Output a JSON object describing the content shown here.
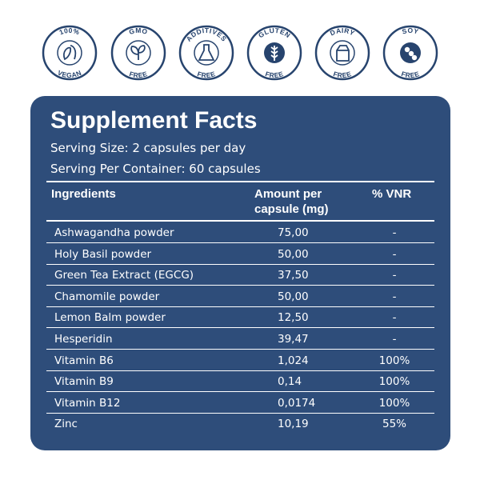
{
  "badges": [
    {
      "top": "100%",
      "bottom": "VEGAN"
    },
    {
      "top": "GMO",
      "bottom": "FREE"
    },
    {
      "top": "ADDITIVES",
      "bottom": "FREE"
    },
    {
      "top": "GLUTEN",
      "bottom": "FREE"
    },
    {
      "top": "DAIRY",
      "bottom": "FREE"
    },
    {
      "top": "SOY",
      "bottom": "FREE"
    }
  ],
  "panel": {
    "title": "Supplement Facts",
    "serving_size": "Serving Size: 2 capsules per day",
    "servings_per_container": "Serving Per Container: 60 capsules"
  },
  "table": {
    "headers": [
      "Ingredients",
      "Amount per capsule (mg)",
      "% VNR"
    ],
    "rows": [
      [
        "Ashwagandha powder",
        "75,00",
        "-"
      ],
      [
        "Holy Basil powder",
        "50,00",
        "-"
      ],
      [
        "Green Tea Extract (EGCG)",
        "37,50",
        "-"
      ],
      [
        "Chamomile powder",
        "50,00",
        "-"
      ],
      [
        "Lemon Balm powder",
        "12,50",
        "-"
      ],
      [
        "Hesperidin",
        "39,47",
        "-"
      ],
      [
        "Vitamin B6",
        "1,024",
        "100%"
      ],
      [
        "Vitamin B9",
        "0,14",
        "100%"
      ],
      [
        "Vitamin B12",
        "0,0174",
        "100%"
      ],
      [
        "Zinc",
        "10,19",
        "55%"
      ]
    ]
  }
}
